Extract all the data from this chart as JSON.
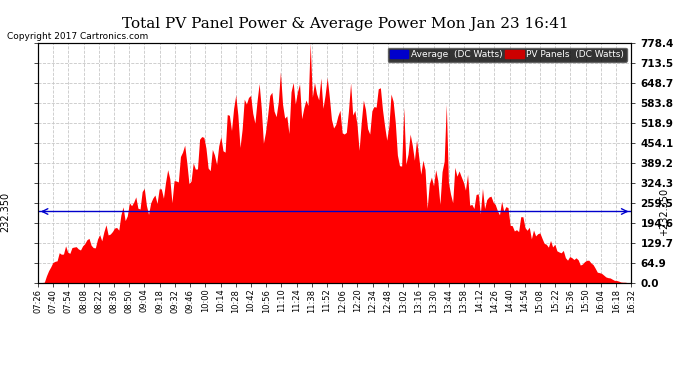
{
  "title": "Total PV Panel Power & Average Power Mon Jan 23 16:41",
  "copyright": "Copyright 2017 Cartronics.com",
  "avg_value": 232.35,
  "y_max": 778.4,
  "y_ticks": [
    0.0,
    64.9,
    129.7,
    194.6,
    259.5,
    324.3,
    389.2,
    454.1,
    518.9,
    583.8,
    648.7,
    713.5,
    778.4
  ],
  "avg_label": "232.350",
  "legend_avg_bg": "#0000cc",
  "legend_pv_bg": "#cc0000",
  "bar_color": "#ff0000",
  "avg_line_color": "#0000cc",
  "bg_color": "#ffffff",
  "grid_color": "#c8c8c8",
  "title_color": "#000000",
  "x_tick_labels": [
    "07:26",
    "07:40",
    "07:54",
    "08:08",
    "08:22",
    "08:36",
    "08:50",
    "09:04",
    "09:18",
    "09:32",
    "09:46",
    "10:00",
    "10:14",
    "10:28",
    "10:42",
    "10:56",
    "11:10",
    "11:24",
    "11:38",
    "11:52",
    "12:06",
    "12:20",
    "12:34",
    "12:48",
    "13:02",
    "13:16",
    "13:30",
    "13:44",
    "13:58",
    "14:12",
    "14:26",
    "14:40",
    "14:54",
    "15:08",
    "15:22",
    "15:36",
    "15:50",
    "16:04",
    "16:18",
    "16:32"
  ],
  "num_points": 280
}
